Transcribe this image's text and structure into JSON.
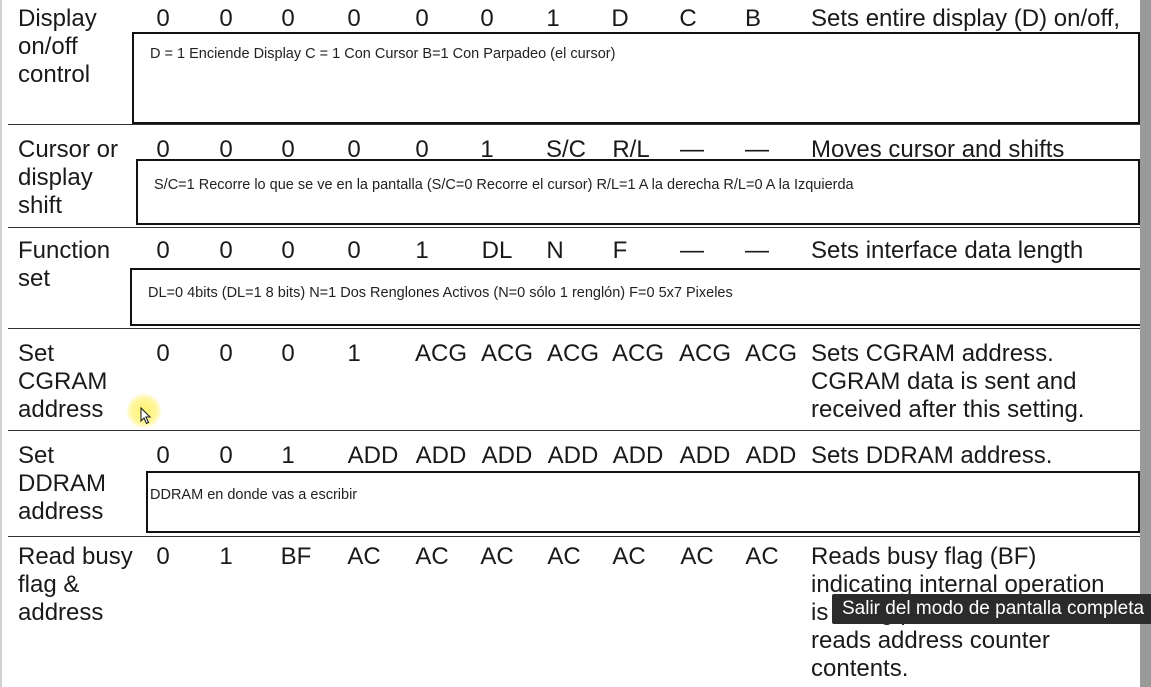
{
  "rows": [
    {
      "label": "Display\non/off\ncontrol",
      "bits": [
        "0",
        "0",
        "0",
        "0",
        "0",
        "0",
        "1",
        "D",
        "C",
        "B"
      ],
      "description": "Sets entire display (D) on/off,",
      "note": "D = 1 Enciende Display     C = 1 Con Cursor    B=1  Con Parpadeo (el cursor)"
    },
    {
      "label": "Cursor or\ndisplay\nshift",
      "bits": [
        "0",
        "0",
        "0",
        "0",
        "0",
        "1",
        "S/C",
        "R/L",
        "—",
        "—"
      ],
      "description": "Moves cursor and shifts",
      "note": "S/C=1 Recorre lo que se ve en la pantalla   (S/C=0 Recorre el cursor)      R/L=1   A la derecha     R/L=0  A la Izquierda"
    },
    {
      "label": "Function\nset",
      "bits": [
        "0",
        "0",
        "0",
        "0",
        "1",
        "DL",
        "N",
        "F",
        "—",
        "—"
      ],
      "description": "Sets interface data length",
      "note": "DL=0 4bits (DL=1 8 bits)  N=1 Dos Renglones Activos (N=0 sólo 1 renglón)  F=0 5x7 Pixeles"
    },
    {
      "label": "Set\nCGRAM\naddress",
      "bits": [
        "0",
        "0",
        "0",
        "1",
        "ACG",
        "ACG",
        "ACG",
        "ACG",
        "ACG",
        "ACG"
      ],
      "description": "Sets CGRAM address.\nCGRAM data is sent and\nreceived after this setting."
    },
    {
      "label": "Set\nDDRAM\naddress",
      "bits": [
        "0",
        "0",
        "1",
        "ADD",
        "ADD",
        "ADD",
        "ADD",
        "ADD",
        "ADD",
        "ADD"
      ],
      "description": "Sets DDRAM address.",
      "note": "DDRAM en donde vas a escribir"
    },
    {
      "label": "Read busy\nflag &\naddress",
      "bits": [
        "0",
        "1",
        "BF",
        "AC",
        "AC",
        "AC",
        "AC",
        "AC",
        "AC",
        "AC"
      ],
      "description": "Reads busy flag (BF)\nindicating internal operation\nis being performed and\nreads address counter\ncontents."
    }
  ],
  "tooltip": "Salir del modo de pantalla completa"
}
